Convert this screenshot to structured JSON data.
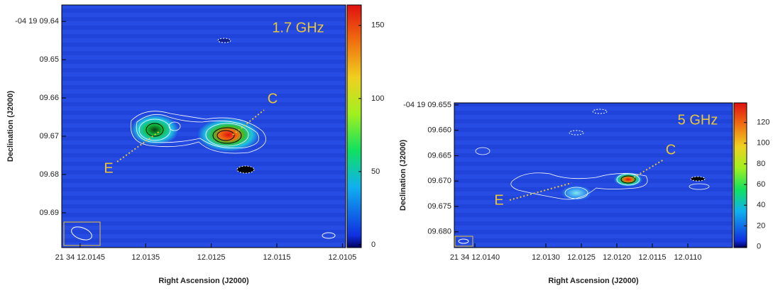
{
  "chart_data": [
    {
      "type": "image",
      "annotation": "1.7 GHz",
      "labels": [
        "E",
        "C"
      ],
      "xlabel": "Right Ascension (J2000)",
      "ylabel": "Declination (J2000)",
      "xlim": [
        12.01478,
        12.01045
      ],
      "xticks": [
        {
          "value": 12.0145,
          "label": "21 34 12.0145"
        },
        12.0135,
        12.0125,
        12.0115,
        12.0105
      ],
      "ylim": [
        9.6991,
        9.6357
      ],
      "yticks": [
        {
          "value": 9.64,
          "label": "-04 19 09.64"
        },
        {
          "value": 9.65,
          "label": "09.65"
        },
        {
          "value": 9.66,
          "label": "09.66"
        },
        {
          "value": 9.67,
          "label": "09.67"
        },
        {
          "value": 9.68,
          "label": "09.68"
        },
        {
          "value": 9.69,
          "label": "09.69"
        }
      ],
      "colorbar": {
        "lim": [
          -2,
          164
        ],
        "ticks": [
          0,
          50,
          100,
          150
        ]
      }
    },
    {
      "type": "image",
      "annotation": "5 GHz",
      "labels": [
        "E",
        "C"
      ],
      "xlabel": "Right Ascension (J2000)",
      "ylabel": "Declination (J2000)",
      "xlim": [
        12.01429,
        12.01037
      ],
      "xticks": [
        {
          "value": 12.014,
          "label": "21 34 12.0140"
        },
        {
          "value": 12.013,
          "label": "12.0130"
        },
        12.0125,
        {
          "value": 12.012,
          "label": "12.0120"
        },
        12.0115,
        {
          "value": 12.011,
          "label": "12.0110"
        }
      ],
      "ylim": [
        9.6831,
        9.6546
      ],
      "yticks": [
        {
          "value": 9.655,
          "label": "-04 19 09.655"
        },
        {
          "value": 9.66,
          "label": "09.660"
        },
        {
          "value": 9.665,
          "label": "09.665"
        },
        {
          "value": 9.67,
          "label": "09.670"
        },
        {
          "value": 9.675,
          "label": "09.675"
        },
        {
          "value": 9.68,
          "label": "09.680"
        }
      ],
      "colorbar": {
        "lim": [
          -1,
          139
        ],
        "ticks": [
          0,
          20,
          40,
          60,
          80,
          100,
          120
        ]
      }
    }
  ]
}
